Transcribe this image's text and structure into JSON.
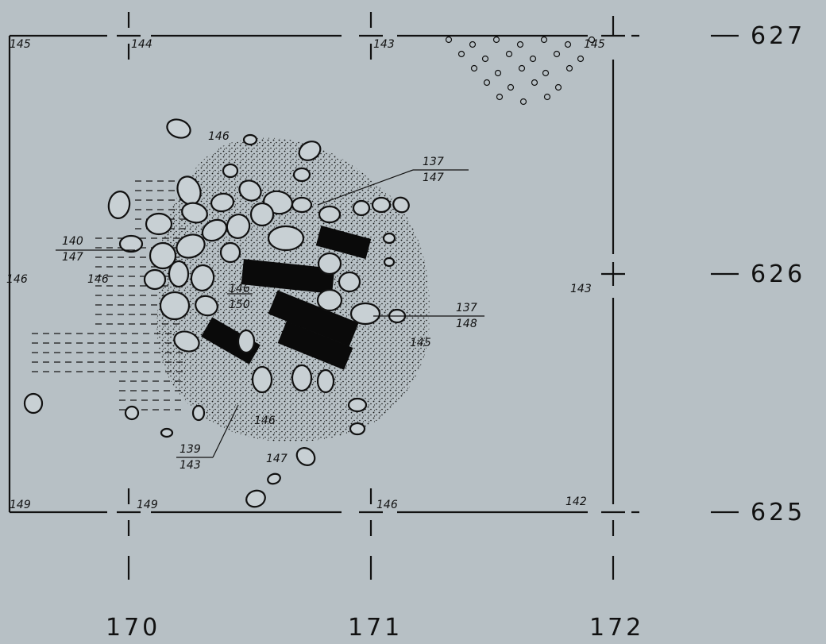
{
  "grid": {
    "x_labels": [
      "170",
      "171",
      "172"
    ],
    "y_labels": [
      "627",
      "626",
      "625"
    ]
  },
  "elevations": [
    "145",
    "144",
    "143",
    "145",
    "146",
    "146",
    "146",
    "143",
    "145",
    "146",
    "147",
    "149",
    "149",
    "146",
    "142"
  ],
  "fractions": [
    {
      "top": "137",
      "bottom": "147"
    },
    {
      "top": "140",
      "bottom": "147"
    },
    {
      "top": "146",
      "bottom": "150"
    },
    {
      "top": "137",
      "bottom": "148"
    },
    {
      "top": "139",
      "bottom": "143"
    }
  ]
}
